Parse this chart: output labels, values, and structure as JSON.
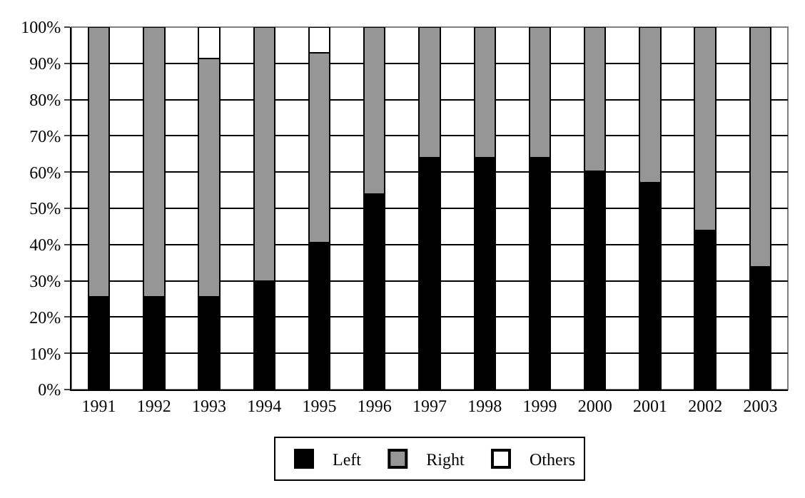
{
  "chart_data": {
    "type": "bar",
    "stacked": true,
    "categories": [
      "1991",
      "1992",
      "1993",
      "1994",
      "1995",
      "1996",
      "1997",
      "1998",
      "1999",
      "2000",
      "2001",
      "2002",
      "2003"
    ],
    "series": [
      {
        "name": "Left",
        "color": "#000000",
        "values": [
          25.5,
          25.5,
          25.5,
          30,
          40.6,
          54,
          64,
          64,
          64,
          60.2,
          57.1,
          43.9,
          33.8
        ]
      },
      {
        "name": "Right",
        "color": "#969696",
        "values": [
          74.5,
          74.5,
          65.9,
          70,
          52.4,
          46,
          36,
          36,
          36,
          39.8,
          42.9,
          56.1,
          66.2
        ]
      },
      {
        "name": "Others",
        "color": "#ffffff",
        "values": [
          null,
          null,
          8.6,
          null,
          7,
          null,
          null,
          null,
          null,
          null,
          null,
          null,
          null
        ]
      }
    ],
    "ylim": [
      0,
      100
    ],
    "yticks": [
      {
        "value": 0,
        "label": "0%"
      },
      {
        "value": 10,
        "label": "10%"
      },
      {
        "value": 20,
        "label": "20%"
      },
      {
        "value": 30,
        "label": "30%"
      },
      {
        "value": 40,
        "label": "40%"
      },
      {
        "value": 50,
        "label": "50%"
      },
      {
        "value": 60,
        "label": "60%"
      },
      {
        "value": 70,
        "label": "70%"
      },
      {
        "value": 80,
        "label": "80%"
      },
      {
        "value": 90,
        "label": "90%"
      },
      {
        "value": 100,
        "label": "100%"
      }
    ],
    "grid": "y",
    "legend": "bottom"
  }
}
